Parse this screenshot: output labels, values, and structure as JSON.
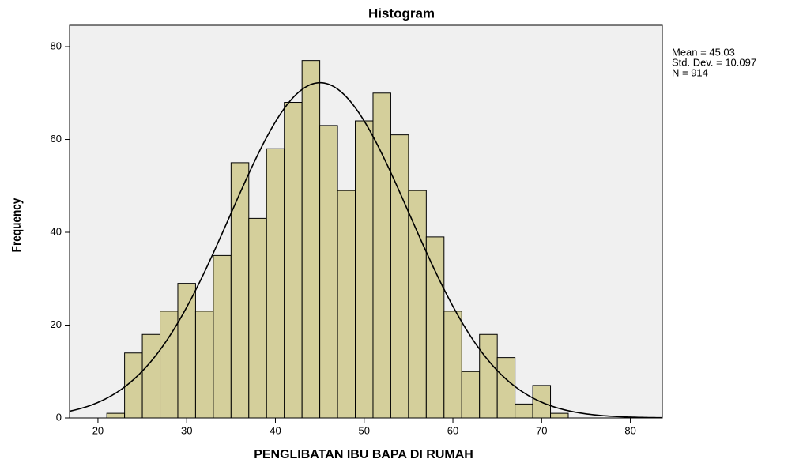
{
  "chart_data": {
    "type": "histogram",
    "title": "Histogram",
    "x_label": "PENGLIBATAN IBU BAPA DI RUMAH",
    "y_label": "Frequency",
    "bins": [
      21,
      23,
      25,
      27,
      29,
      31,
      33,
      35,
      37,
      39,
      41,
      43,
      45,
      47,
      49,
      51,
      53,
      55,
      57,
      59,
      61,
      63,
      65,
      67,
      69,
      71,
      73
    ],
    "values": [
      1,
      14,
      18,
      23,
      29,
      23,
      35,
      55,
      43,
      58,
      68,
      77,
      63,
      49,
      64,
      70,
      61,
      49,
      39,
      23,
      10,
      18,
      13,
      3,
      7,
      1
    ],
    "color": "#d4cf9b",
    "xlim": [
      16.8,
      83.6
    ],
    "xticks": [
      20,
      30,
      40,
      50,
      60,
      70,
      80
    ],
    "ylim": [
      0,
      84.6
    ],
    "yticks": [
      0,
      20,
      40,
      60,
      80
    ],
    "stats": {
      "values": [
        45.03,
        10.097,
        914
      ],
      "value_labels": [
        "Mean = 45.03",
        "Std. Dev. = 10.097",
        "N = 914"
      ]
    }
  }
}
